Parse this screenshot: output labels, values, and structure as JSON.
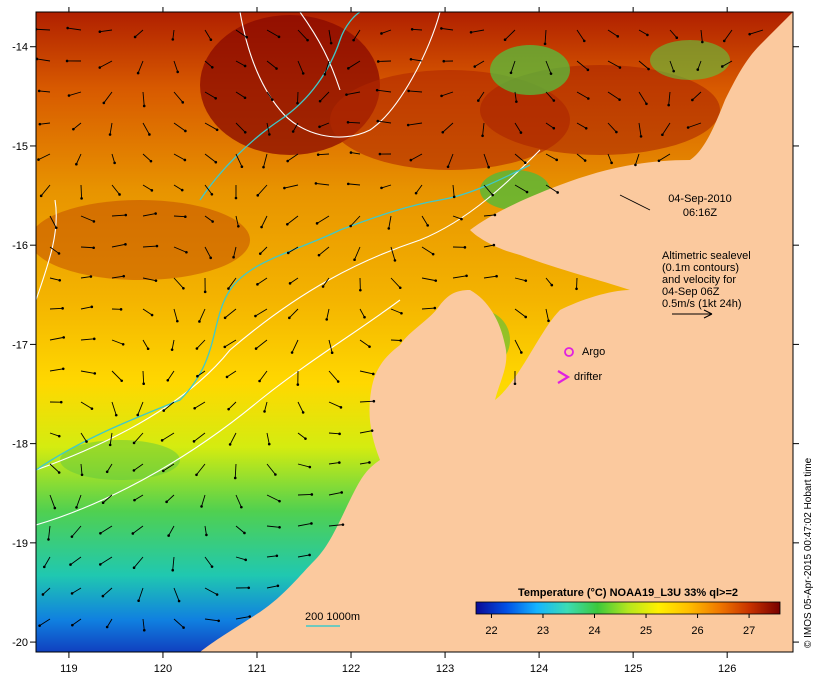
{
  "map": {
    "lon_range": [
      118.65,
      126.7
    ],
    "lat_range": [
      -20.1,
      -13.65
    ],
    "x_ticks": [
      119,
      120,
      121,
      122,
      123,
      124,
      125,
      126
    ],
    "y_ticks": [
      -14,
      -15,
      -16,
      -17,
      -18,
      -19,
      -20
    ],
    "land_color": "#fbc99e",
    "contour_color": "#ffffff",
    "isobath_color": "#3fc9c9"
  },
  "annotations": {
    "date": "04-Sep-2010",
    "time": "06:16Z",
    "altimetry_lines": [
      "Altimetric sealevel",
      "(0.1m contours)",
      "and velocity for",
      "04-Sep 06Z",
      "0.5m/s (1kt 24h)"
    ],
    "argo_label": "Argo",
    "drifter_label": "drifter",
    "isobath_label": "200  1000m",
    "credit": "© IMOS 05-Apr-2015 00:47:02 Hobart time"
  },
  "colorbar": {
    "title": "Temperature (°C) NOAA19_L3U 33% ql>=2",
    "ticks": [
      22,
      23,
      24,
      25,
      26,
      27
    ],
    "range": [
      21.7,
      27.6
    ],
    "colors": [
      "#0a0a96",
      "#0050e6",
      "#14b4ff",
      "#3cdcb4",
      "#3cc83c",
      "#b4e61e",
      "#fff000",
      "#ffbe00",
      "#f07800",
      "#c83200",
      "#780000"
    ]
  }
}
